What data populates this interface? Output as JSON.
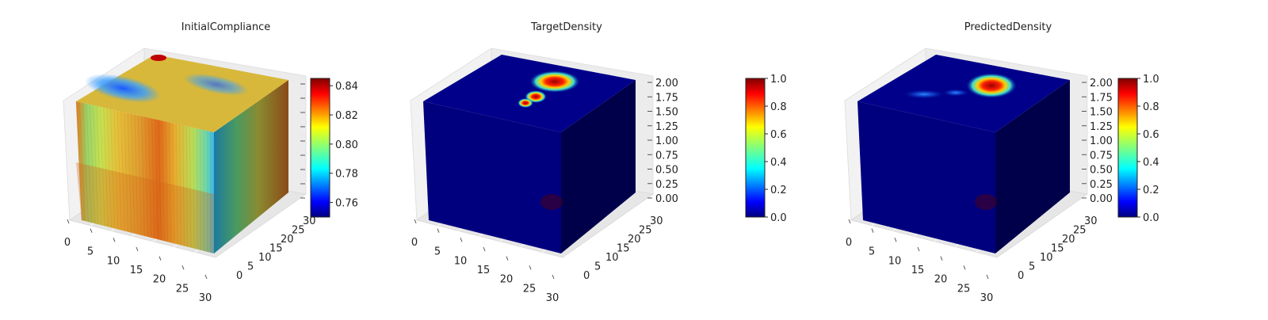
{
  "chart_data": [
    {
      "type": "heatmap",
      "title": "InitialCompliance",
      "x_ticks": [
        "0",
        "5",
        "10",
        "15",
        "20",
        "25",
        "30"
      ],
      "y_ticks": [
        "0",
        "5",
        "10",
        "15",
        "20",
        "25",
        "30"
      ],
      "z_ticks": [],
      "colorbar": {
        "ticks": [
          "0.76",
          "0.78",
          "0.80",
          "0.82",
          "0.84"
        ],
        "range": [
          0.75,
          0.845
        ],
        "colormap": "jet"
      }
    },
    {
      "type": "heatmap",
      "title": "TargetDensity",
      "x_ticks": [
        "0",
        "5",
        "10",
        "15",
        "20",
        "25",
        "30"
      ],
      "y_ticks": [
        "0",
        "5",
        "10",
        "15",
        "20",
        "25",
        "30"
      ],
      "z_ticks": [
        "0.00",
        "0.25",
        "0.50",
        "0.75",
        "1.00",
        "1.25",
        "1.50",
        "1.75",
        "2.00"
      ],
      "colorbar": {
        "ticks": [
          "0.0",
          "0.2",
          "0.4",
          "0.6",
          "0.8",
          "1.0"
        ],
        "range": [
          0.0,
          1.0
        ],
        "colormap": "jet"
      }
    },
    {
      "type": "heatmap",
      "title": "PredictedDensity",
      "x_ticks": [
        "0",
        "5",
        "10",
        "15",
        "20",
        "25",
        "30"
      ],
      "y_ticks": [
        "0",
        "5",
        "10",
        "15",
        "20",
        "25",
        "30"
      ],
      "z_ticks": [
        "0.00",
        "0.25",
        "0.50",
        "0.75",
        "1.00",
        "1.25",
        "1.50",
        "1.75",
        "2.00"
      ],
      "colorbar": {
        "ticks": [
          "0.0",
          "0.2",
          "0.4",
          "0.6",
          "0.8",
          "1.0"
        ],
        "range": [
          0.0,
          1.0
        ],
        "colormap": "jet"
      }
    }
  ],
  "colors": {
    "jet": [
      "#00007f",
      "#0000ff",
      "#007fff",
      "#00ffff",
      "#7fff7f",
      "#ffff00",
      "#ff7f00",
      "#ff0000",
      "#7f0000"
    ],
    "background_dark": "#00007a"
  }
}
